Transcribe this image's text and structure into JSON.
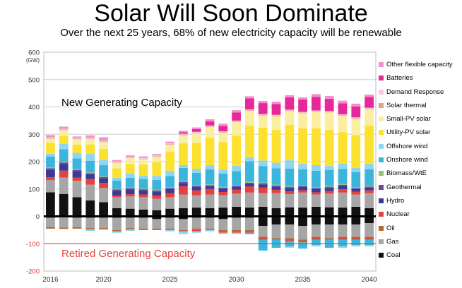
{
  "page": {
    "title": "Solar Will Soon Dominate",
    "subtitle": "Over the next 25 years, 68% of new electricity capacity will be renewable"
  },
  "chart_data": {
    "type": "bar",
    "stacked": true,
    "title": "Solar Will Soon Dominate",
    "subtitle": "Over the next 25 years, 68% of new electricity capacity will be renewable",
    "ylabel": "(GW)",
    "ylim": [
      -200,
      600
    ],
    "yticks": [
      -200,
      -100,
      0,
      100,
      200,
      300,
      400,
      500,
      600
    ],
    "xtick_labels": [
      "2016",
      "2020",
      "2025",
      "2030",
      "2035",
      "2040"
    ],
    "xtick_years": [
      2016,
      2020,
      2025,
      2030,
      2035,
      2040
    ],
    "grid": true,
    "legend_position": "right",
    "annotations": {
      "new": "New Generating Capacity",
      "retired": "Retired Generating Capacity"
    },
    "categories": [
      2016,
      2017,
      2018,
      2019,
      2020,
      2021,
      2022,
      2023,
      2024,
      2025,
      2026,
      2027,
      2028,
      2029,
      2030,
      2031,
      2032,
      2033,
      2034,
      2035,
      2036,
      2037,
      2038,
      2039,
      2040
    ],
    "series": [
      {
        "name": "Coal",
        "color": "#111111",
        "values": [
          88,
          82,
          70,
          58,
          52,
          30,
          28,
          25,
          22,
          28,
          30,
          32,
          30,
          32,
          35,
          32,
          35,
          30,
          33,
          32,
          35,
          33,
          32,
          35,
          30
        ]
      },
      {
        "name": "Gas",
        "color": "#a6a6a6",
        "values": [
          45,
          60,
          60,
          58,
          52,
          40,
          45,
          45,
          42,
          42,
          50,
          45,
          50,
          45,
          48,
          55,
          50,
          55,
          48,
          55,
          45,
          50,
          55,
          45,
          55
        ]
      },
      {
        "name": "Oil",
        "color": "#b06a32",
        "values": [
          0,
          0,
          0,
          0,
          0,
          0,
          0,
          0,
          0,
          0,
          0,
          0,
          0,
          0,
          0,
          0,
          0,
          0,
          0,
          0,
          0,
          0,
          0,
          0,
          0
        ]
      },
      {
        "name": "Nuclear",
        "color": "#e8413c",
        "values": [
          10,
          25,
          12,
          20,
          18,
          6,
          8,
          10,
          12,
          15,
          30,
          18,
          20,
          12,
          15,
          22,
          20,
          12,
          10,
          8,
          8,
          10,
          12,
          10,
          10
        ]
      },
      {
        "name": "Hydro",
        "color": "#3c3a94",
        "values": [
          28,
          25,
          22,
          18,
          18,
          18,
          18,
          15,
          15,
          15,
          12,
          12,
          10,
          12,
          10,
          10,
          12,
          12,
          12,
          12,
          12,
          10,
          12,
          10,
          10
        ]
      },
      {
        "name": "Geothermal",
        "color": "#6b4a9c",
        "values": [
          5,
          5,
          5,
          4,
          4,
          4,
          4,
          4,
          4,
          4,
          4,
          4,
          4,
          4,
          4,
          4,
          4,
          4,
          4,
          4,
          4,
          4,
          4,
          4,
          4
        ]
      },
      {
        "name": "Biomass/WtE",
        "color": "#92c27f",
        "values": [
          3,
          3,
          3,
          3,
          3,
          3,
          3,
          3,
          3,
          3,
          3,
          3,
          3,
          3,
          3,
          3,
          3,
          3,
          3,
          3,
          3,
          3,
          3,
          3,
          3
        ]
      },
      {
        "name": "Onshore wind",
        "color": "#3cb5dc",
        "values": [
          40,
          45,
          40,
          42,
          40,
          30,
          35,
          35,
          35,
          40,
          48,
          45,
          55,
          48,
          50,
          75,
          60,
          60,
          65,
          58,
          60,
          60,
          55,
          55,
          60
        ]
      },
      {
        "name": "Offshore wind",
        "color": "#8fd4f0",
        "values": [
          10,
          20,
          20,
          25,
          20,
          10,
          15,
          12,
          15,
          20,
          10,
          15,
          15,
          15,
          20,
          15,
          20,
          20,
          30,
          20,
          20,
          15,
          20,
          15,
          20
        ]
      },
      {
        "name": "Utility-PV solar",
        "color": "#fde12f",
        "values": [
          40,
          30,
          30,
          35,
          40,
          35,
          35,
          40,
          50,
          70,
          80,
          95,
          100,
          100,
          110,
          115,
          120,
          120,
          130,
          130,
          135,
          130,
          115,
          120,
          140
        ]
      },
      {
        "name": "Small-PV solar",
        "color": "#fbeea0",
        "values": [
          15,
          20,
          20,
          20,
          25,
          20,
          22,
          20,
          20,
          25,
          30,
          35,
          40,
          35,
          50,
          55,
          45,
          50,
          50,
          55,
          60,
          65,
          60,
          60,
          60
        ]
      },
      {
        "name": "Solar thermal",
        "color": "#e3a088",
        "values": [
          2,
          2,
          2,
          2,
          2,
          2,
          2,
          2,
          2,
          2,
          2,
          2,
          2,
          2,
          2,
          2,
          2,
          2,
          2,
          2,
          2,
          2,
          2,
          2,
          2
        ]
      },
      {
        "name": "Demand Response",
        "color": "#f6c8df",
        "values": [
          3,
          3,
          3,
          3,
          3,
          3,
          3,
          3,
          3,
          3,
          3,
          3,
          3,
          3,
          3,
          3,
          3,
          3,
          3,
          3,
          3,
          3,
          3,
          3,
          3
        ]
      },
      {
        "name": "Batteries",
        "color": "#e8289a",
        "values": [
          0,
          0,
          0,
          0,
          0,
          0,
          0,
          0,
          0,
          0,
          5,
          10,
          15,
          20,
          30,
          40,
          40,
          40,
          45,
          45,
          50,
          45,
          40,
          40,
          40
        ]
      },
      {
        "name": "Other flexible capacity",
        "color": "#f28fcf",
        "values": [
          8,
          8,
          5,
          8,
          12,
          5,
          5,
          5,
          5,
          6,
          6,
          6,
          8,
          8,
          8,
          8,
          8,
          8,
          8,
          8,
          10,
          10,
          10,
          10,
          8
        ]
      }
    ],
    "retired_series": [
      {
        "name": "Coal",
        "color": "#111111",
        "values": [
          -5,
          -3,
          -5,
          -5,
          -5,
          -5,
          -5,
          -5,
          -10,
          -5,
          -10,
          -5,
          -5,
          -10,
          -5,
          -5,
          -35,
          -30,
          -30,
          -35,
          -30,
          -30,
          -30,
          -30,
          -25
        ]
      },
      {
        "name": "Gas",
        "color": "#a6a6a6",
        "values": [
          -35,
          -38,
          -35,
          -38,
          -38,
          -45,
          -38,
          -40,
          -35,
          -40,
          -40,
          -40,
          -40,
          -40,
          -45,
          -45,
          -40,
          -50,
          -50,
          -50,
          -45,
          -50,
          -45,
          -45,
          -50
        ]
      },
      {
        "name": "Oil",
        "color": "#b06a32",
        "values": [
          -5,
          -5,
          -5,
          -5,
          -5,
          -5,
          -5,
          -5,
          -5,
          -5,
          -5,
          -5,
          -5,
          -5,
          -5,
          -5,
          -5,
          -5,
          -5,
          -5,
          -5,
          -5,
          -5,
          -5,
          -5
        ]
      },
      {
        "name": "Nuclear",
        "color": "#e8413c",
        "values": [
          0,
          0,
          0,
          0,
          0,
          0,
          0,
          0,
          0,
          0,
          0,
          -5,
          0,
          -5,
          -5,
          -5,
          -5,
          0,
          -5,
          -5,
          -5,
          0,
          -5,
          -5,
          -5
        ]
      },
      {
        "name": "Onshore wind",
        "color": "#3cb5dc",
        "values": [
          0,
          0,
          0,
          0,
          0,
          0,
          0,
          0,
          0,
          0,
          0,
          0,
          0,
          0,
          0,
          -5,
          -40,
          -30,
          -20,
          -20,
          -20,
          -30,
          -25,
          -20,
          -20
        ]
      },
      {
        "name": "Offshore wind",
        "color": "#8fd4f0",
        "values": [
          0,
          0,
          0,
          -5,
          0,
          -5,
          -5,
          0,
          0,
          -5,
          -10,
          -5,
          -5,
          -5,
          -5,
          0,
          0,
          0,
          -5,
          -5,
          -5,
          0,
          -5,
          -5,
          -5
        ]
      }
    ]
  }
}
